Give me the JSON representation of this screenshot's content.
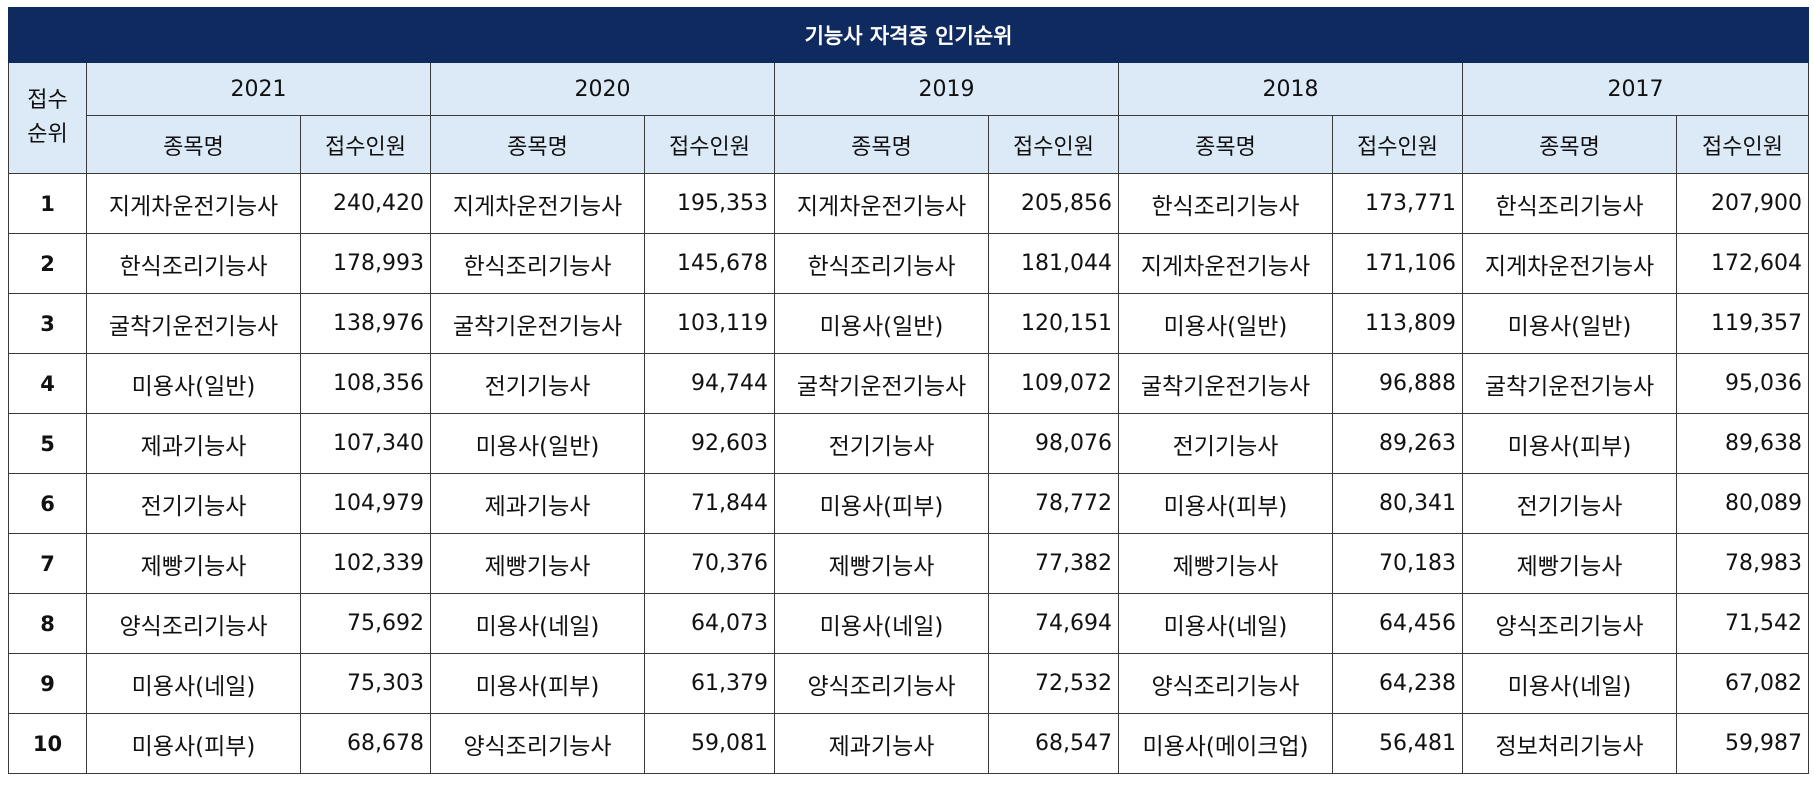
{
  "title": "기능사 자격증 인기순위",
  "rank_header_line1": "접수",
  "rank_header_line2": "순위",
  "years": [
    "2021",
    "2020",
    "2019",
    "2018",
    "2017"
  ],
  "col_name_label": "종목명",
  "col_count_label": "접수인원",
  "rows": [
    {
      "rank": "1",
      "cells": [
        [
          "지게차운전기능사",
          "240,420"
        ],
        [
          "지게차운전기능사",
          "195,353"
        ],
        [
          "지게차운전기능사",
          "205,856"
        ],
        [
          "한식조리기능사",
          "173,771"
        ],
        [
          "한식조리기능사",
          "207,900"
        ]
      ]
    },
    {
      "rank": "2",
      "cells": [
        [
          "한식조리기능사",
          "178,993"
        ],
        [
          "한식조리기능사",
          "145,678"
        ],
        [
          "한식조리기능사",
          "181,044"
        ],
        [
          "지게차운전기능사",
          "171,106"
        ],
        [
          "지게차운전기능사",
          "172,604"
        ]
      ]
    },
    {
      "rank": "3",
      "cells": [
        [
          "굴착기운전기능사",
          "138,976"
        ],
        [
          "굴착기운전기능사",
          "103,119"
        ],
        [
          "미용사(일반)",
          "120,151"
        ],
        [
          "미용사(일반)",
          "113,809"
        ],
        [
          "미용사(일반)",
          "119,357"
        ]
      ]
    },
    {
      "rank": "4",
      "cells": [
        [
          "미용사(일반)",
          "108,356"
        ],
        [
          "전기기능사",
          "94,744"
        ],
        [
          "굴착기운전기능사",
          "109,072"
        ],
        [
          "굴착기운전기능사",
          "96,888"
        ],
        [
          "굴착기운전기능사",
          "95,036"
        ]
      ]
    },
    {
      "rank": "5",
      "cells": [
        [
          "제과기능사",
          "107,340"
        ],
        [
          "미용사(일반)",
          "92,603"
        ],
        [
          "전기기능사",
          "98,076"
        ],
        [
          "전기기능사",
          "89,263"
        ],
        [
          "미용사(피부)",
          "89,638"
        ]
      ]
    },
    {
      "rank": "6",
      "cells": [
        [
          "전기기능사",
          "104,979"
        ],
        [
          "제과기능사",
          "71,844"
        ],
        [
          "미용사(피부)",
          "78,772"
        ],
        [
          "미용사(피부)",
          "80,341"
        ],
        [
          "전기기능사",
          "80,089"
        ]
      ]
    },
    {
      "rank": "7",
      "cells": [
        [
          "제빵기능사",
          "102,339"
        ],
        [
          "제빵기능사",
          "70,376"
        ],
        [
          "제빵기능사",
          "77,382"
        ],
        [
          "제빵기능사",
          "70,183"
        ],
        [
          "제빵기능사",
          "78,983"
        ]
      ]
    },
    {
      "rank": "8",
      "cells": [
        [
          "양식조리기능사",
          "75,692"
        ],
        [
          "미용사(네일)",
          "64,073"
        ],
        [
          "미용사(네일)",
          "74,694"
        ],
        [
          "미용사(네일)",
          "64,456"
        ],
        [
          "양식조리기능사",
          "71,542"
        ]
      ]
    },
    {
      "rank": "9",
      "cells": [
        [
          "미용사(네일)",
          "75,303"
        ],
        [
          "미용사(피부)",
          "61,379"
        ],
        [
          "양식조리기능사",
          "72,532"
        ],
        [
          "양식조리기능사",
          "64,238"
        ],
        [
          "미용사(네일)",
          "67,082"
        ]
      ]
    },
    {
      "rank": "10",
      "cells": [
        [
          "미용사(피부)",
          "68,678"
        ],
        [
          "양식조리기능사",
          "59,081"
        ],
        [
          "제과기능사",
          "68,547"
        ],
        [
          "미용사(메이크업)",
          "56,481"
        ],
        [
          "정보처리기능사",
          "59,987"
        ]
      ]
    }
  ]
}
